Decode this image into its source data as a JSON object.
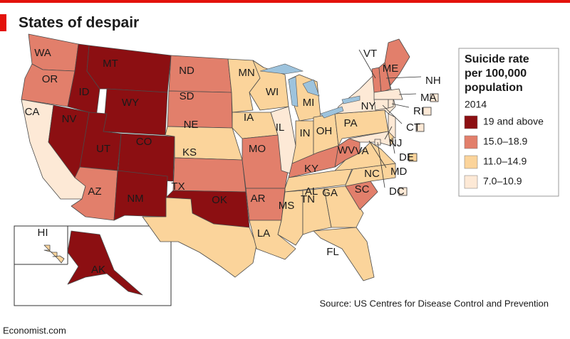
{
  "title": "States of despair",
  "legend": {
    "title_lines": [
      "Suicide rate",
      "per 100,000",
      "population"
    ],
    "year": "2014",
    "bins": [
      {
        "label": "19 and above",
        "color": "#8c0f12"
      },
      {
        "label": "15.0–18.9",
        "color": "#e27f6b"
      },
      {
        "label": "11.0–14.9",
        "color": "#fbd49b"
      },
      {
        "label": "7.0–10.9",
        "color": "#fde9d6"
      }
    ]
  },
  "states": [
    {
      "label": "WA",
      "bin": 1
    },
    {
      "label": "OR",
      "bin": 1
    },
    {
      "label": "CA",
      "bin": 3
    },
    {
      "label": "NV",
      "bin": 0
    },
    {
      "label": "ID",
      "bin": 0
    },
    {
      "label": "MT",
      "bin": 0
    },
    {
      "label": "WY",
      "bin": 0
    },
    {
      "label": "UT",
      "bin": 0
    },
    {
      "label": "CO",
      "bin": 0
    },
    {
      "label": "AZ",
      "bin": 1
    },
    {
      "label": "NM",
      "bin": 0
    },
    {
      "label": "ND",
      "bin": 1
    },
    {
      "label": "SD",
      "bin": 1
    },
    {
      "label": "NE",
      "bin": 2
    },
    {
      "label": "KS",
      "bin": 1
    },
    {
      "label": "OK",
      "bin": 0
    },
    {
      "label": "TX",
      "bin": 2
    },
    {
      "label": "MN",
      "bin": 2
    },
    {
      "label": "IA",
      "bin": 2
    },
    {
      "label": "MO",
      "bin": 1
    },
    {
      "label": "AR",
      "bin": 1
    },
    {
      "label": "LA",
      "bin": 2
    },
    {
      "label": "WI",
      "bin": 2
    },
    {
      "label": "IL",
      "bin": 3
    },
    {
      "label": "MI",
      "bin": 2
    },
    {
      "label": "IN",
      "bin": 2
    },
    {
      "label": "OH",
      "bin": 2
    },
    {
      "label": "KY",
      "bin": 1
    },
    {
      "label": "TN",
      "bin": 2
    },
    {
      "label": "MS",
      "bin": 2
    },
    {
      "label": "AL",
      "bin": 2
    },
    {
      "label": "GA",
      "bin": 2
    },
    {
      "label": "FL",
      "bin": 2
    },
    {
      "label": "SC",
      "bin": 1
    },
    {
      "label": "NC",
      "bin": 2
    },
    {
      "label": "VA",
      "bin": 2
    },
    {
      "label": "WV",
      "bin": 1
    },
    {
      "label": "PA",
      "bin": 2
    },
    {
      "label": "NY",
      "bin": 3
    },
    {
      "label": "MD",
      "bin": 3
    },
    {
      "label": "DE",
      "bin": 2
    },
    {
      "label": "NJ",
      "bin": 3
    },
    {
      "label": "VT",
      "bin": 1
    },
    {
      "label": "NH",
      "bin": 1
    },
    {
      "label": "ME",
      "bin": 1
    },
    {
      "label": "MA",
      "bin": 3
    },
    {
      "label": "CT",
      "bin": 3
    },
    {
      "label": "RI",
      "bin": 3
    },
    {
      "label": "DC",
      "bin": 3
    },
    {
      "label": "AK",
      "bin": 0
    },
    {
      "label": "HI",
      "bin": 2
    }
  ],
  "source": "Source: US Centres for Disease Control and Prevention",
  "footer": "Economist.com"
}
